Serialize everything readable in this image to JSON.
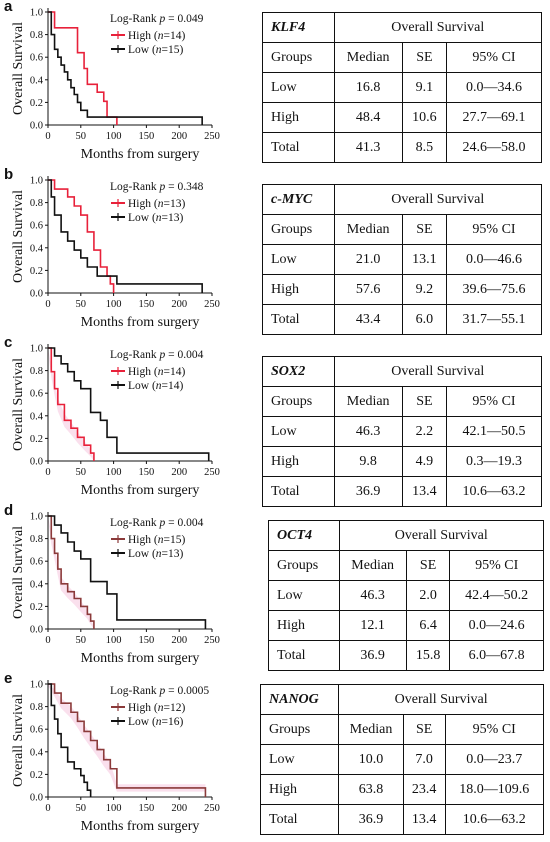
{
  "chart_data": [
    {
      "type": "line",
      "panel_label": "a",
      "gene": "KLF4",
      "xlabel": "Months from surgery",
      "ylabel": "Overall Survival",
      "xlim": [
        0,
        250
      ],
      "ylim": [
        0,
        1.0
      ],
      "xticks": [
        "0",
        "50",
        "100",
        "150",
        "200",
        "250"
      ],
      "yticks": [
        "0.0",
        "0.2",
        "0.4",
        "0.6",
        "0.8",
        "1.0"
      ],
      "annotation": "Log-Rank p = 0.049",
      "legend_position": "top-right",
      "series": [
        {
          "name": "High (n=14)",
          "color": "#e8213a",
          "band": false,
          "x": [
            0,
            10,
            40,
            45,
            55,
            60,
            70,
            75,
            85,
            90,
            95,
            105
          ],
          "y": [
            1.0,
            0.86,
            0.86,
            0.64,
            0.5,
            0.36,
            0.36,
            0.29,
            0.21,
            0.07,
            0.07,
            0.0
          ]
        },
        {
          "name": "Low (n=15)",
          "color": "#111111",
          "band": false,
          "x": [
            0,
            5,
            10,
            15,
            20,
            25,
            30,
            35,
            40,
            45,
            50,
            60,
            75,
            80,
            90,
            235,
            235
          ],
          "y": [
            1.0,
            0.8,
            0.67,
            0.6,
            0.53,
            0.47,
            0.4,
            0.33,
            0.27,
            0.2,
            0.13,
            0.07,
            0.07,
            0.07,
            0.07,
            0.07,
            0.0
          ]
        }
      ],
      "table": {
        "header": "Overall Survival",
        "columns": [
          "Groups",
          "Median",
          "SE",
          "95% CI"
        ],
        "rows": [
          [
            "Low",
            "16.8",
            "9.1",
            "0.0—34.6"
          ],
          [
            "High",
            "48.4",
            "10.6",
            "27.7—69.1"
          ],
          [
            "Total",
            "41.3",
            "8.5",
            "24.6—58.0"
          ]
        ]
      }
    },
    {
      "type": "line",
      "panel_label": "b",
      "gene": "c-MYC",
      "xlabel": "Months from surgery",
      "ylabel": "Overall Survival",
      "xlim": [
        0,
        250
      ],
      "ylim": [
        0,
        1.0
      ],
      "xticks": [
        "0",
        "50",
        "100",
        "150",
        "200",
        "250"
      ],
      "yticks": [
        "0.0",
        "0.2",
        "0.4",
        "0.6",
        "0.8",
        "1.0"
      ],
      "annotation": "Log-Rank p = 0.348",
      "legend_position": "top-right",
      "series": [
        {
          "name": "High (n=13)",
          "color": "#e8213a",
          "band": false,
          "x": [
            0,
            10,
            30,
            40,
            50,
            60,
            70,
            80,
            90,
            95,
            100
          ],
          "y": [
            1.0,
            0.92,
            0.85,
            0.77,
            0.69,
            0.54,
            0.38,
            0.23,
            0.15,
            0.08,
            0.0
          ]
        },
        {
          "name": "Low (n=13)",
          "color": "#111111",
          "band": false,
          "x": [
            0,
            5,
            10,
            20,
            30,
            40,
            50,
            60,
            75,
            105,
            235,
            235
          ],
          "y": [
            1.0,
            0.85,
            0.69,
            0.54,
            0.46,
            0.38,
            0.31,
            0.23,
            0.15,
            0.08,
            0.08,
            0.0
          ]
        }
      ],
      "table": {
        "header": "Overall Survival",
        "columns": [
          "Groups",
          "Median",
          "SE",
          "95% CI"
        ],
        "rows": [
          [
            "Low",
            "21.0",
            "13.1",
            "0.0—46.6"
          ],
          [
            "High",
            "57.6",
            "9.2",
            "39.6—75.6"
          ],
          [
            "Total",
            "43.4",
            "6.0",
            "31.7—55.1"
          ]
        ]
      }
    },
    {
      "type": "line",
      "panel_label": "c",
      "gene": "SOX2",
      "xlabel": "Months from surgery",
      "ylabel": "Overall Survival",
      "xlim": [
        0,
        250
      ],
      "ylim": [
        0,
        1.0
      ],
      "xticks": [
        "0",
        "50",
        "100",
        "150",
        "200",
        "250"
      ],
      "yticks": [
        "0.0",
        "0.2",
        "0.4",
        "0.6",
        "0.8",
        "1.0"
      ],
      "annotation": "Log-Rank p = 0.004",
      "legend_position": "top-right",
      "series": [
        {
          "name": "High (n=14)",
          "color": "#e8213a",
          "band": true,
          "x": [
            0,
            5,
            10,
            15,
            25,
            35,
            45,
            55,
            65,
            70
          ],
          "y": [
            1.0,
            0.79,
            0.64,
            0.5,
            0.36,
            0.29,
            0.21,
            0.14,
            0.07,
            0.0
          ]
        },
        {
          "name": "Low (n=14)",
          "color": "#111111",
          "band": false,
          "x": [
            0,
            10,
            20,
            30,
            40,
            50,
            65,
            75,
            80,
            90,
            105,
            245,
            245
          ],
          "y": [
            1.0,
            0.93,
            0.86,
            0.79,
            0.71,
            0.64,
            0.43,
            0.43,
            0.36,
            0.21,
            0.07,
            0.07,
            0.0
          ]
        }
      ],
      "table": {
        "header": "Overall Survival",
        "columns": [
          "Groups",
          "Median",
          "SE",
          "95% CI"
        ],
        "rows": [
          [
            "Low",
            "46.3",
            "2.2",
            "42.1—50.5"
          ],
          [
            "High",
            "9.8",
            "4.9",
            "0.3—19.3"
          ],
          [
            "Total",
            "36.9",
            "13.4",
            "10.6—63.2"
          ]
        ]
      }
    },
    {
      "type": "line",
      "panel_label": "d",
      "gene": "OCT4",
      "xlabel": "Months from surgery",
      "ylabel": "Overall Survival",
      "xlim": [
        0,
        250
      ],
      "ylim": [
        0,
        1.0
      ],
      "xticks": [
        "0",
        "50",
        "100",
        "150",
        "200",
        "250"
      ],
      "yticks": [
        "0.0",
        "0.2",
        "0.4",
        "0.6",
        "0.8",
        "1.0"
      ],
      "annotation": "Log-Rank p = 0.004",
      "legend_position": "top-right",
      "series": [
        {
          "name": "High (n=15)",
          "color": "#8b3a3a",
          "band": true,
          "x": [
            0,
            5,
            10,
            15,
            20,
            30,
            40,
            50,
            60,
            65,
            70
          ],
          "y": [
            1.0,
            0.8,
            0.67,
            0.53,
            0.4,
            0.33,
            0.27,
            0.2,
            0.13,
            0.07,
            0.0
          ]
        },
        {
          "name": "Low (n=13)",
          "color": "#111111",
          "band": false,
          "x": [
            0,
            10,
            20,
            30,
            40,
            50,
            65,
            75,
            90,
            105,
            240,
            240
          ],
          "y": [
            1.0,
            0.92,
            0.85,
            0.77,
            0.69,
            0.62,
            0.42,
            0.42,
            0.31,
            0.08,
            0.08,
            0.0
          ]
        }
      ],
      "table": {
        "header": "Overall Survival",
        "columns": [
          "Groups",
          "Median",
          "SE",
          "95% CI"
        ],
        "rows": [
          [
            "Low",
            "46.3",
            "2.0",
            "42.4—50.2"
          ],
          [
            "High",
            "12.1",
            "6.4",
            "0.0—24.6"
          ],
          [
            "Total",
            "36.9",
            "15.8",
            "6.0—67.8"
          ]
        ]
      }
    },
    {
      "type": "line",
      "panel_label": "e",
      "gene": "NANOG",
      "xlabel": "Months from surgery",
      "ylabel": "Overall Survival",
      "xlim": [
        0,
        250
      ],
      "ylim": [
        0,
        1.0
      ],
      "xticks": [
        "0",
        "50",
        "100",
        "150",
        "200",
        "250"
      ],
      "yticks": [
        "0.0",
        "0.2",
        "0.4",
        "0.6",
        "0.8",
        "1.0"
      ],
      "annotation": "Log-Rank p = 0.0005",
      "legend_position": "top-right",
      "series": [
        {
          "name": "High (n=12)",
          "color": "#8b3a3a",
          "band": true,
          "x": [
            0,
            10,
            20,
            35,
            45,
            55,
            65,
            75,
            85,
            95,
            105,
            240,
            240
          ],
          "y": [
            1.0,
            0.92,
            0.83,
            0.75,
            0.67,
            0.58,
            0.5,
            0.42,
            0.33,
            0.25,
            0.08,
            0.08,
            0.0
          ]
        },
        {
          "name": "Low (n=16)",
          "color": "#111111",
          "band": false,
          "x": [
            0,
            5,
            10,
            15,
            20,
            30,
            40,
            50,
            55,
            60,
            65
          ],
          "y": [
            1.0,
            0.81,
            0.69,
            0.56,
            0.44,
            0.31,
            0.25,
            0.19,
            0.13,
            0.06,
            0.0
          ]
        }
      ],
      "table": {
        "header": "Overall Survival",
        "columns": [
          "Groups",
          "Median",
          "SE",
          "95% CI"
        ],
        "rows": [
          [
            "Low",
            "10.0",
            "7.0",
            "0.0—23.7"
          ],
          [
            "High",
            "63.8",
            "23.4",
            "18.0—109.6"
          ],
          [
            "Total",
            "36.9",
            "13.4",
            "10.6—63.2"
          ]
        ]
      }
    }
  ]
}
